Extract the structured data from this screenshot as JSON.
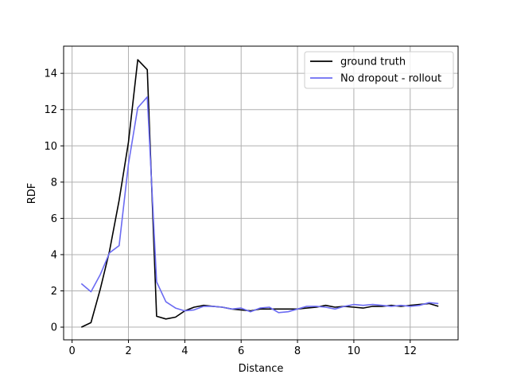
{
  "chart_data": {
    "type": "line",
    "title": "",
    "xlabel": "Distance",
    "ylabel": "RDF",
    "xlim": [
      -0.3,
      13.7
    ],
    "ylim": [
      -0.7,
      15.5
    ],
    "xticks": [
      0,
      2,
      4,
      6,
      8,
      10,
      12
    ],
    "yticks": [
      0,
      2,
      4,
      6,
      8,
      10,
      12,
      14
    ],
    "grid": true,
    "legend_position": "top-right",
    "series": [
      {
        "name": "ground truth",
        "color": "#000000",
        "x": [
          0.33,
          0.67,
          1.0,
          1.33,
          1.67,
          2.0,
          2.33,
          2.67,
          3.0,
          3.33,
          3.67,
          4.0,
          4.33,
          4.67,
          5.0,
          5.33,
          5.67,
          6.0,
          6.33,
          6.67,
          7.0,
          7.33,
          7.67,
          8.0,
          8.33,
          8.67,
          9.0,
          9.33,
          9.67,
          10.0,
          10.33,
          10.67,
          11.0,
          11.33,
          11.67,
          12.0,
          12.33,
          12.67,
          13.0
        ],
        "y": [
          0.0,
          0.25,
          2.1,
          4.2,
          7.0,
          10.2,
          14.75,
          14.2,
          0.6,
          0.45,
          0.55,
          0.9,
          1.1,
          1.2,
          1.15,
          1.1,
          1.0,
          0.95,
          0.9,
          1.0,
          1.0,
          1.0,
          1.0,
          1.0,
          1.05,
          1.1,
          1.2,
          1.1,
          1.15,
          1.1,
          1.05,
          1.15,
          1.15,
          1.2,
          1.15,
          1.2,
          1.25,
          1.3,
          1.15
        ]
      },
      {
        "name": "No dropout - rollout",
        "color": "#6b6bf2",
        "x": [
          0.33,
          0.67,
          1.0,
          1.33,
          1.67,
          2.0,
          2.33,
          2.67,
          3.0,
          3.33,
          3.67,
          4.0,
          4.33,
          4.67,
          5.0,
          5.33,
          5.67,
          6.0,
          6.33,
          6.67,
          7.0,
          7.33,
          7.67,
          8.0,
          8.33,
          8.67,
          9.0,
          9.33,
          9.67,
          10.0,
          10.33,
          10.67,
          11.0,
          11.33,
          11.67,
          12.0,
          12.33,
          12.67,
          13.0
        ],
        "y": [
          2.4,
          1.95,
          2.9,
          4.1,
          4.5,
          9.0,
          12.1,
          12.7,
          2.5,
          1.4,
          1.05,
          0.9,
          0.95,
          1.15,
          1.15,
          1.1,
          1.0,
          1.05,
          0.85,
          1.05,
          1.1,
          0.8,
          0.85,
          1.0,
          1.15,
          1.15,
          1.1,
          1.0,
          1.15,
          1.25,
          1.2,
          1.25,
          1.2,
          1.15,
          1.2,
          1.15,
          1.2,
          1.35,
          1.3
        ]
      }
    ]
  }
}
